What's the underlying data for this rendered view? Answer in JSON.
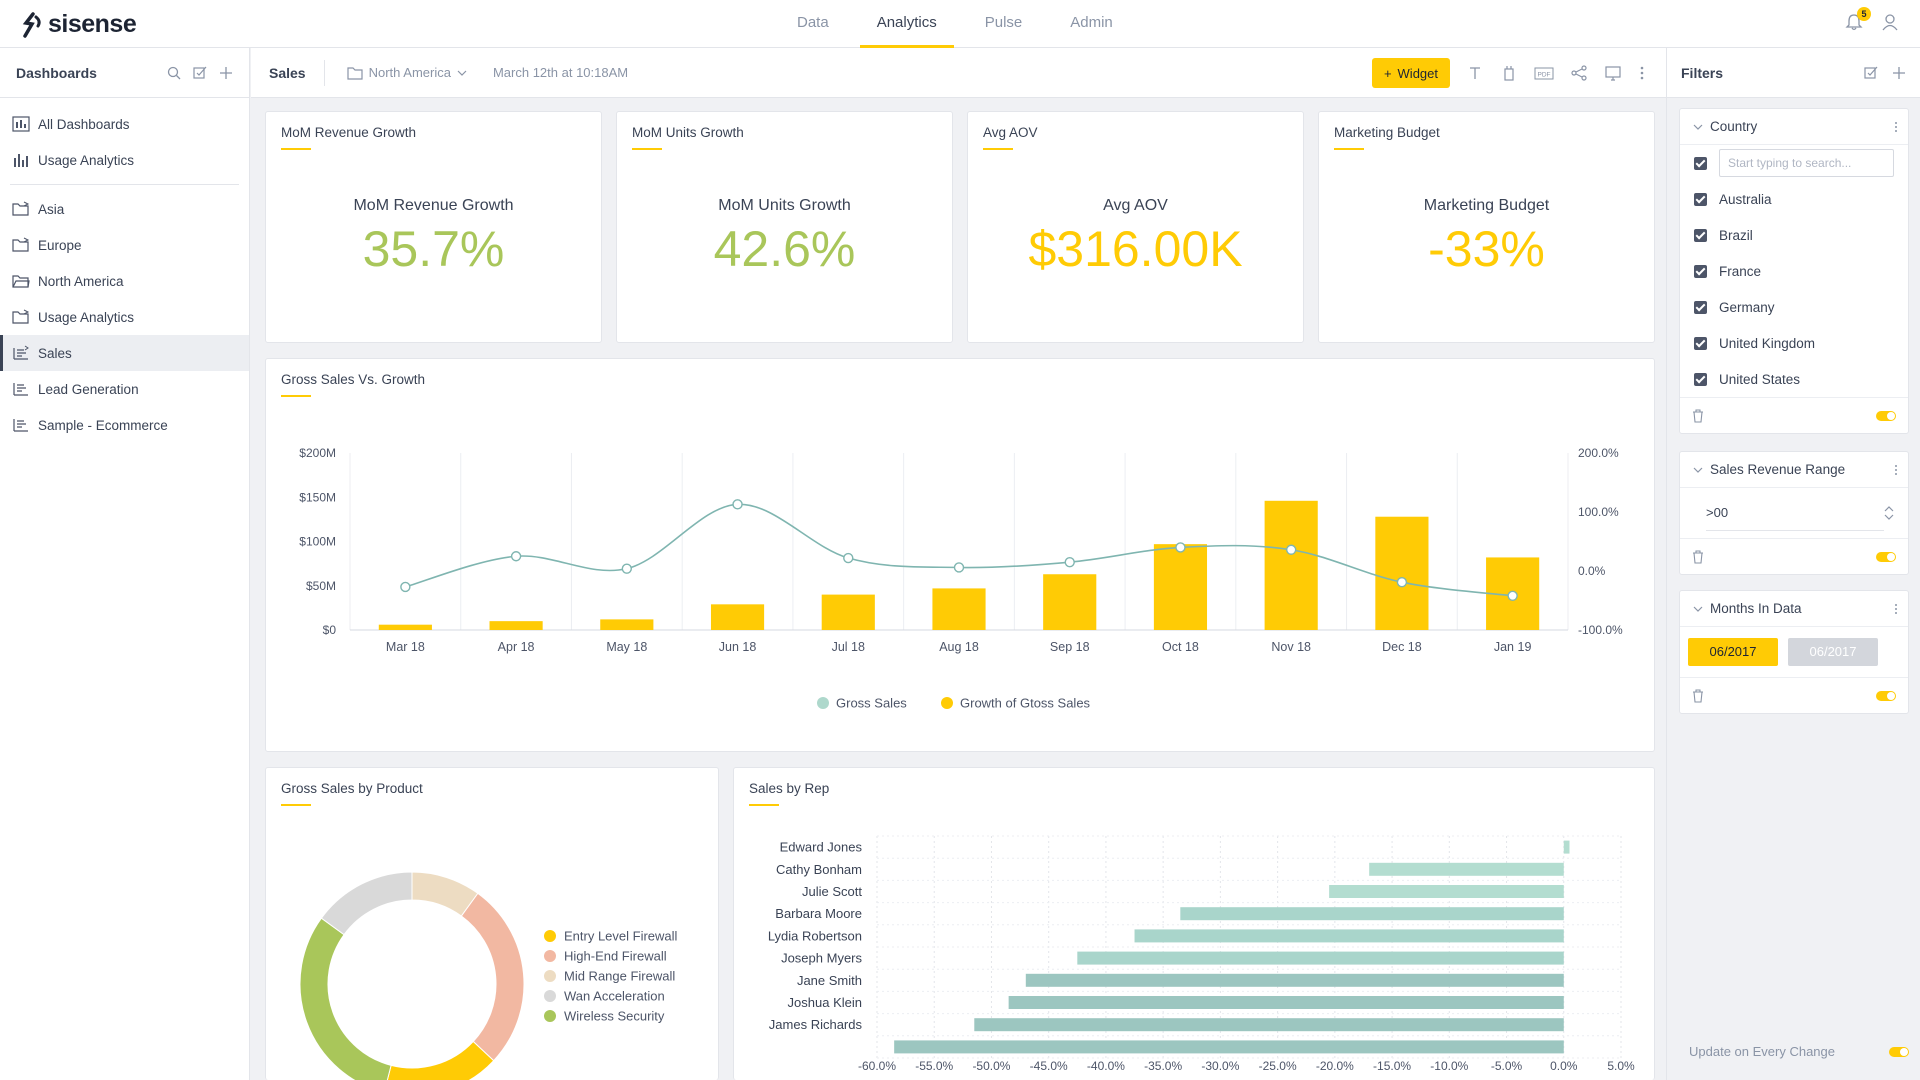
{
  "app": {
    "brand": "sisense",
    "nav_tabs": [
      "Data",
      "Analytics",
      "Pulse",
      "Admin"
    ],
    "active_tab": "Analytics",
    "notification_count": "5"
  },
  "sidebar": {
    "title": "Dashboards",
    "top_items": [
      {
        "label": "All Dashboards",
        "icon": "dashboards-icon"
      },
      {
        "label": "Usage Analytics",
        "icon": "bar-chart-icon"
      }
    ],
    "folders": [
      {
        "label": "Asia",
        "icon": "folder-shared-icon"
      },
      {
        "label": "Europe",
        "icon": "folder-shared-icon"
      },
      {
        "label": "North America",
        "icon": "folder-open-icon"
      },
      {
        "label": "Usage Analytics",
        "icon": "folder-shared-icon"
      },
      {
        "label": "Sales",
        "icon": "dashboard-shared-icon",
        "active": true
      },
      {
        "label": "Lead Generation",
        "icon": "dashboard-icon"
      },
      {
        "label": "Sample - Ecommerce",
        "icon": "dashboard-icon"
      }
    ]
  },
  "toolbar": {
    "dashboard_title": "Sales",
    "folder": "North America",
    "timestamp": "March 12th at 10:18AM",
    "widget_button": "Widget",
    "pdf_label": "PDF"
  },
  "kpis": [
    {
      "header": "MoM Revenue Growth",
      "label": "MoM Revenue Growth",
      "value": "35.7%",
      "color": "#a9c65a"
    },
    {
      "header": "MoM Units Growth",
      "label": "MoM Units Growth",
      "value": "42.6%",
      "color": "#a9c65a"
    },
    {
      "header": "Avg AOV",
      "label": "Avg AOV",
      "value": "$316.00K",
      "color": "#ffcb05"
    },
    {
      "header": "Marketing Budget",
      "label": "Marketing Budget",
      "value": "-33%",
      "color": "#ffcb05"
    }
  ],
  "gross_sales_chart": {
    "title": "Gross Sales Vs. Growth",
    "chart_data": {
      "type": "bar",
      "categories": [
        "Mar 18",
        "Apr 18",
        "May 18",
        "Jun 18",
        "Jul 18",
        "Aug 18",
        "Sep 18",
        "Oct 18",
        "Nov 18",
        "Dec 18",
        "Jan 19"
      ],
      "y_ticks": [
        "$200M",
        "$150M",
        "$100M",
        "$50M",
        "$0"
      ],
      "y2_ticks": [
        "200.0%",
        "100.0%",
        "0.0%",
        "-100.0%"
      ],
      "ylim": [
        0,
        200
      ],
      "y2lim": [
        -100,
        200
      ],
      "series": [
        {
          "name": "Growth of Gtoss Sales",
          "type": "bar",
          "color": "#ffcb05",
          "values": [
            6,
            10,
            12,
            29,
            40,
            47,
            63,
            97,
            146,
            128,
            82
          ]
        },
        {
          "name": "Gross Sales",
          "type": "line",
          "color": "#7fb5b0",
          "values": [
            -27,
            25,
            4,
            113,
            22,
            6,
            15,
            40,
            36,
            -19,
            -42
          ]
        }
      ],
      "legend": [
        "Gross Sales",
        "Growth of Gtoss Sales"
      ],
      "legend_colors": [
        "#aed8cc",
        "#ffcb05"
      ]
    }
  },
  "product_chart": {
    "title": "Gross Sales by Product",
    "chart_data": {
      "type": "pie",
      "categories": [
        "Entry Level Firewall",
        "High-End Firewall",
        "Mid Range Firewall",
        "Wan Acceleration",
        "Wireless Security"
      ],
      "values": [
        17,
        27,
        10,
        15,
        31
      ],
      "colors": [
        "#ffcb05",
        "#f2b8a2",
        "#eddcc2",
        "#d9d9d9",
        "#a9c65a"
      ]
    }
  },
  "rep_chart": {
    "title": "Sales by Rep",
    "chart_data": {
      "type": "bar",
      "orientation": "horizontal",
      "categories": [
        "Edward Jones",
        "Cathy Bonham",
        "Julie Scott",
        "Barbara Moore",
        "Lydia Robertson",
        "Joseph Myers",
        "Jane Smith",
        "Joshua Klein",
        "James Richards",
        ""
      ],
      "values": [
        0.5,
        -17,
        -20.5,
        -33.5,
        -37.5,
        -42.5,
        -47,
        -48.5,
        -51.5,
        -58.5
      ],
      "xlim": [
        -60,
        5
      ],
      "x_ticks": [
        "-60.0%",
        "-55.0%",
        "-50.0%",
        "-45.0%",
        "-40.0%",
        "-35.0%",
        "-30.0%",
        "-25.0%",
        "-20.0%",
        "-15.0%",
        "-10.0%",
        "-5.0%",
        "0.0%",
        "5.0%"
      ]
    }
  },
  "filters": {
    "title": "Filters",
    "country": {
      "name": "Country",
      "search_placeholder": "Start typing to search...",
      "options": [
        "Australia",
        "Brazil",
        "France",
        "Germany",
        "United Kingdom",
        "United States"
      ]
    },
    "revenue_range": {
      "name": "Sales Revenue Range",
      "value": ">00"
    },
    "months": {
      "name": "Months In Data",
      "from": "06/2017",
      "to": "06/2017"
    },
    "update_label": "Update on Every Change"
  }
}
